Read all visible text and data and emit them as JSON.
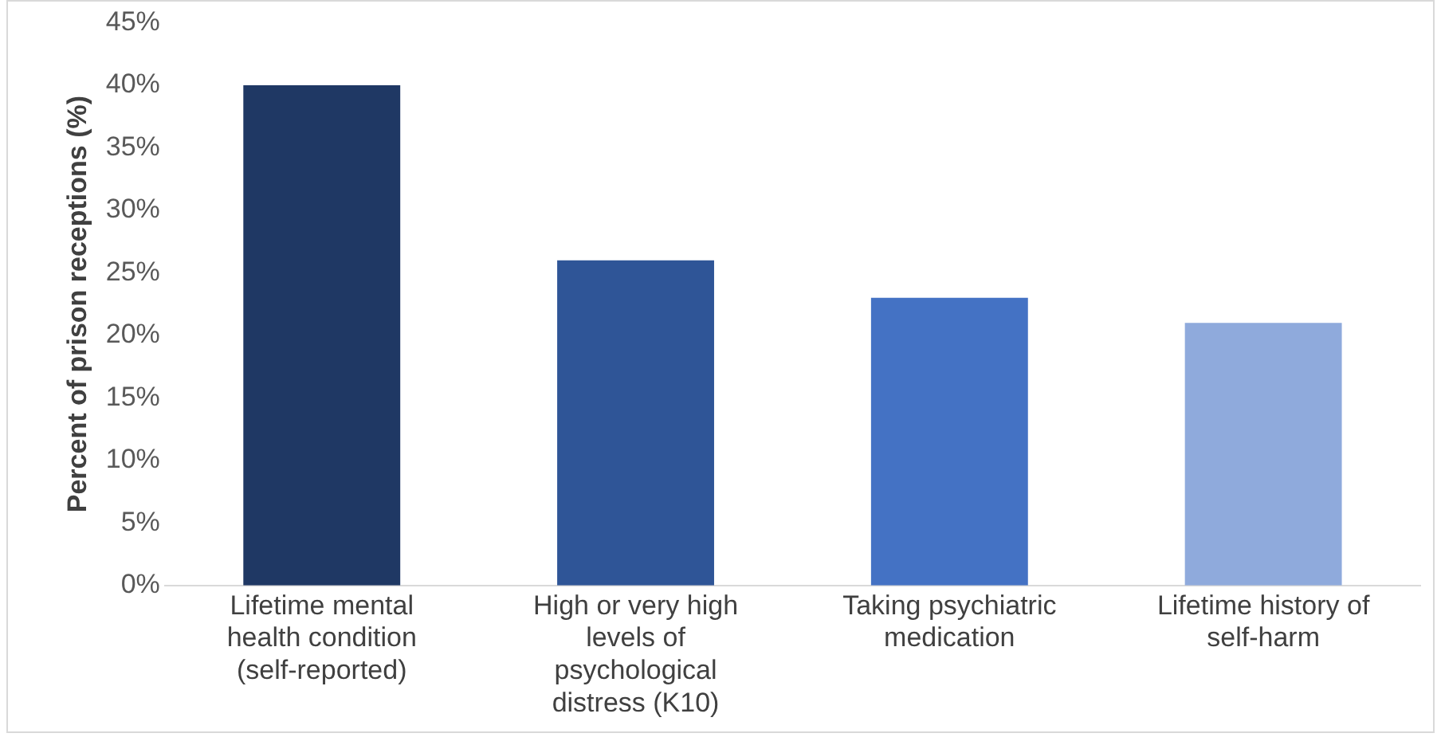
{
  "chart_data": {
    "type": "bar",
    "ylabel": "Percent of prison receptions (%)",
    "categories": [
      "Lifetime mental health condition (self-reported)",
      "High or very high levels of psychological distress (K10)",
      "Taking psychiatric medication",
      "Lifetime history of self-harm"
    ],
    "values": [
      40,
      26,
      23,
      21
    ],
    "colors": [
      "#1f3864",
      "#2f5597",
      "#4472c4",
      "#8faadc"
    ],
    "ylim": [
      0,
      45
    ],
    "yticks": [
      {
        "value": 0,
        "label": "0%"
      },
      {
        "value": 5,
        "label": "5%"
      },
      {
        "value": 10,
        "label": "10%"
      },
      {
        "value": 15,
        "label": "15%"
      },
      {
        "value": 20,
        "label": "20%"
      },
      {
        "value": 25,
        "label": "25%"
      },
      {
        "value": 30,
        "label": "30%"
      },
      {
        "value": 35,
        "label": "35%"
      },
      {
        "value": 40,
        "label": "40%"
      },
      {
        "value": 45,
        "label": "45%"
      }
    ],
    "grid": false,
    "legend": false
  }
}
